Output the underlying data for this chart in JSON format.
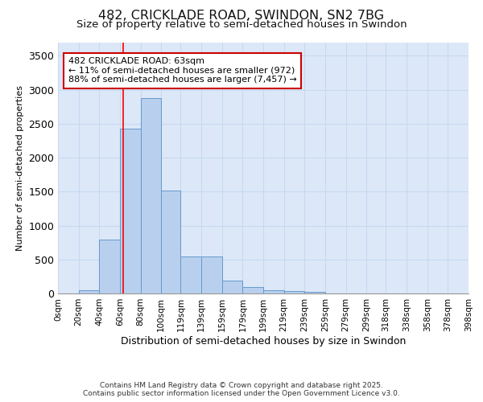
{
  "title": "482, CRICKLADE ROAD, SWINDON, SN2 7BG",
  "subtitle": "Size of property relative to semi-detached houses in Swindon",
  "xlabel": "Distribution of semi-detached houses by size in Swindon",
  "ylabel": "Number of semi-detached properties",
  "fig_background_color": "#ffffff",
  "axes_background_color": "#dce8f8",
  "bar_color": "#b8d0ee",
  "bar_edge_color": "#6699cc",
  "bin_edges": [
    0,
    20,
    40,
    60,
    80,
    100,
    119,
    139,
    159,
    179,
    199,
    219,
    239,
    259,
    279,
    299,
    318,
    338,
    358,
    378,
    398
  ],
  "bin_labels": [
    "0sqm",
    "20sqm",
    "40sqm",
    "60sqm",
    "80sqm",
    "100sqm",
    "119sqm",
    "139sqm",
    "159sqm",
    "179sqm",
    "199sqm",
    "219sqm",
    "239sqm",
    "259sqm",
    "279sqm",
    "299sqm",
    "318sqm",
    "338sqm",
    "358sqm",
    "378sqm",
    "398sqm"
  ],
  "bar_heights": [
    5,
    50,
    790,
    2430,
    2880,
    1520,
    550,
    550,
    185,
    100,
    45,
    30,
    25,
    5,
    5,
    5,
    2,
    2,
    2,
    2
  ],
  "red_line_x": 63,
  "ylim": [
    0,
    3700
  ],
  "yticks": [
    0,
    500,
    1000,
    1500,
    2000,
    2500,
    3000,
    3500
  ],
  "annotation_text": "482 CRICKLADE ROAD: 63sqm\n← 11% of semi-detached houses are smaller (972)\n88% of semi-detached houses are larger (7,457) →",
  "footer_line1": "Contains HM Land Registry data © Crown copyright and database right 2025.",
  "footer_line2": "Contains public sector information licensed under the Open Government Licence v3.0.",
  "title_fontsize": 11.5,
  "subtitle_fontsize": 9.5,
  "annotation_fontsize": 8,
  "xlabel_fontsize": 9,
  "ylabel_fontsize": 8,
  "annotation_box_facecolor": "#ffffff",
  "annotation_box_edgecolor": "#cc0000",
  "grid_color": "#c8d8f0",
  "footer_fontsize": 6.5
}
